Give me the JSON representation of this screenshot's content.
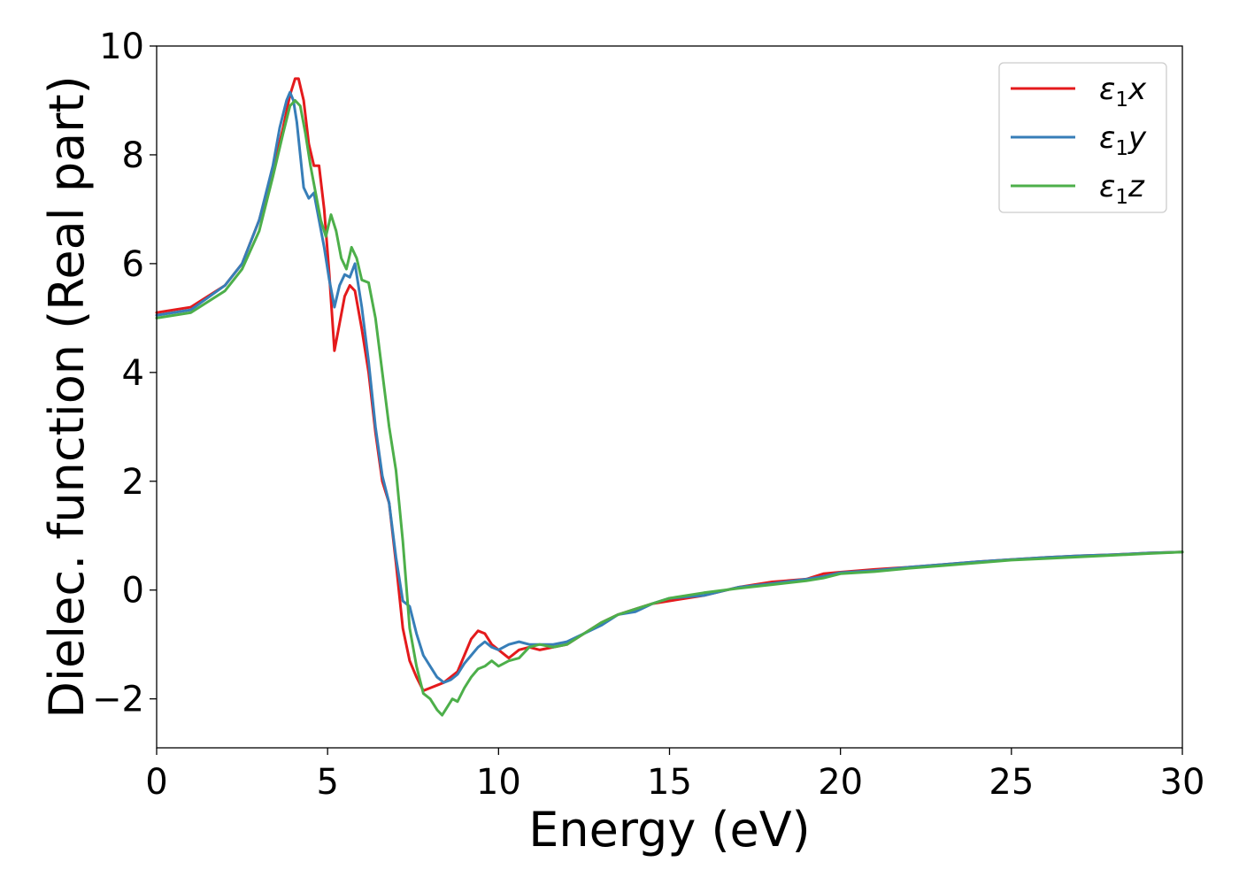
{
  "chart_data": {
    "type": "line",
    "title": "",
    "xlabel": "Energy (eV)",
    "ylabel": "Dielec. function (Real part)",
    "xlim": [
      0,
      30
    ],
    "ylim": [
      -2.9,
      10
    ],
    "xticks": [
      0,
      5,
      10,
      15,
      20,
      25,
      30
    ],
    "yticks": [
      -2,
      0,
      2,
      4,
      6,
      8,
      10
    ],
    "xtick_labels": [
      "0",
      "5",
      "10",
      "15",
      "20",
      "25",
      "30"
    ],
    "ytick_labels": [
      "−2",
      "0",
      "2",
      "4",
      "6",
      "8",
      "10"
    ],
    "grid": false,
    "legend_position": "top-right",
    "series": [
      {
        "name": "ε₁x",
        "legend_base": "ε",
        "legend_sub": "1",
        "legend_suffix": "x",
        "color": "#e41a1c",
        "x": [
          0,
          1,
          2,
          2.5,
          3,
          3.4,
          3.7,
          3.9,
          4.05,
          4.15,
          4.3,
          4.45,
          4.6,
          4.75,
          4.9,
          5.05,
          5.2,
          5.35,
          5.5,
          5.65,
          5.8,
          6.0,
          6.2,
          6.4,
          6.6,
          6.8,
          7.0,
          7.2,
          7.4,
          7.6,
          7.8,
          8.0,
          8.2,
          8.4,
          8.6,
          8.8,
          9.0,
          9.2,
          9.4,
          9.6,
          9.8,
          10.0,
          10.3,
          10.6,
          10.9,
          11.2,
          11.6,
          12.0,
          12.5,
          13.0,
          13.5,
          14.0,
          14.5,
          15,
          16,
          17,
          18,
          19,
          19.5,
          20,
          21,
          22,
          23,
          24,
          25,
          26,
          27,
          28,
          29,
          30
        ],
        "y": [
          5.1,
          5.2,
          5.6,
          6.0,
          6.8,
          7.7,
          8.5,
          9.1,
          9.4,
          9.4,
          9.0,
          8.2,
          7.8,
          7.8,
          7.0,
          5.8,
          4.4,
          4.9,
          5.4,
          5.6,
          5.5,
          4.8,
          4.0,
          2.9,
          2.0,
          1.6,
          0.5,
          -0.7,
          -1.3,
          -1.6,
          -1.85,
          -1.8,
          -1.75,
          -1.7,
          -1.6,
          -1.5,
          -1.2,
          -0.9,
          -0.75,
          -0.8,
          -1.0,
          -1.1,
          -1.25,
          -1.1,
          -1.05,
          -1.1,
          -1.05,
          -1.0,
          -0.8,
          -0.6,
          -0.45,
          -0.35,
          -0.25,
          -0.2,
          -0.1,
          0.05,
          0.15,
          0.2,
          0.3,
          0.33,
          0.38,
          0.42,
          0.47,
          0.52,
          0.56,
          0.6,
          0.63,
          0.65,
          0.68,
          0.7
        ]
      },
      {
        "name": "ε₁y",
        "legend_base": "ε",
        "legend_sub": "1",
        "legend_suffix": "y",
        "color": "#377eb8",
        "x": [
          0,
          1,
          2,
          2.5,
          3,
          3.4,
          3.6,
          3.8,
          3.9,
          4.0,
          4.1,
          4.2,
          4.3,
          4.45,
          4.6,
          4.75,
          4.9,
          5.05,
          5.2,
          5.35,
          5.5,
          5.65,
          5.8,
          6.0,
          6.2,
          6.4,
          6.6,
          6.8,
          7.0,
          7.2,
          7.4,
          7.6,
          7.8,
          8.0,
          8.2,
          8.4,
          8.6,
          8.8,
          9.0,
          9.2,
          9.4,
          9.6,
          9.8,
          10.0,
          10.3,
          10.6,
          10.9,
          11.2,
          11.6,
          12.0,
          12.5,
          13.0,
          13.5,
          14.0,
          14.5,
          15,
          16,
          17,
          18,
          19,
          19.5,
          20,
          21,
          22,
          23,
          24,
          25,
          26,
          27,
          28,
          29,
          30
        ],
        "y": [
          5.05,
          5.15,
          5.6,
          6.0,
          6.8,
          7.8,
          8.5,
          9.0,
          9.15,
          9.0,
          8.6,
          8.0,
          7.4,
          7.2,
          7.3,
          6.8,
          6.3,
          5.7,
          5.2,
          5.6,
          5.8,
          5.75,
          6.0,
          5.2,
          4.2,
          3.0,
          2.1,
          1.6,
          0.6,
          -0.2,
          -0.3,
          -0.8,
          -1.2,
          -1.4,
          -1.6,
          -1.7,
          -1.65,
          -1.55,
          -1.35,
          -1.2,
          -1.05,
          -0.95,
          -1.05,
          -1.1,
          -1.0,
          -0.95,
          -1.0,
          -1.0,
          -1.0,
          -0.95,
          -0.8,
          -0.65,
          -0.45,
          -0.4,
          -0.25,
          -0.15,
          -0.1,
          0.05,
          0.12,
          0.2,
          0.25,
          0.32,
          0.36,
          0.42,
          0.47,
          0.52,
          0.56,
          0.6,
          0.63,
          0.65,
          0.68,
          0.7
        ]
      },
      {
        "name": "ε₁z",
        "legend_base": "ε",
        "legend_sub": "1",
        "legend_suffix": "z",
        "color": "#4daf4a",
        "x": [
          0,
          1,
          2,
          2.5,
          3,
          3.4,
          3.7,
          3.9,
          4.05,
          4.2,
          4.35,
          4.5,
          4.65,
          4.8,
          4.95,
          5.1,
          5.25,
          5.4,
          5.55,
          5.7,
          5.85,
          6.0,
          6.2,
          6.4,
          6.6,
          6.8,
          7.0,
          7.2,
          7.4,
          7.6,
          7.8,
          8.0,
          8.2,
          8.35,
          8.5,
          8.65,
          8.8,
          9.0,
          9.2,
          9.4,
          9.6,
          9.8,
          10.0,
          10.3,
          10.6,
          10.9,
          11.2,
          11.6,
          12.0,
          12.5,
          13.0,
          13.5,
          14.0,
          14.5,
          15,
          16,
          17,
          18,
          19,
          19.5,
          20,
          21,
          22,
          23,
          24,
          25,
          26,
          27,
          28,
          29,
          30
        ],
        "y": [
          5.0,
          5.1,
          5.5,
          5.9,
          6.6,
          7.6,
          8.4,
          8.9,
          9.0,
          8.9,
          8.4,
          7.8,
          7.3,
          6.8,
          6.5,
          6.9,
          6.6,
          6.1,
          5.9,
          6.3,
          6.1,
          5.7,
          5.65,
          5.0,
          4.0,
          3.0,
          2.2,
          0.9,
          -0.7,
          -1.4,
          -1.9,
          -2.0,
          -2.2,
          -2.3,
          -2.15,
          -2.0,
          -2.05,
          -1.8,
          -1.6,
          -1.45,
          -1.4,
          -1.3,
          -1.4,
          -1.3,
          -1.25,
          -1.05,
          -1.0,
          -1.05,
          -1.0,
          -0.8,
          -0.6,
          -0.45,
          -0.35,
          -0.25,
          -0.15,
          -0.05,
          0.03,
          0.1,
          0.17,
          0.22,
          0.3,
          0.34,
          0.4,
          0.45,
          0.5,
          0.55,
          0.58,
          0.61,
          0.64,
          0.67,
          0.7
        ]
      }
    ]
  }
}
